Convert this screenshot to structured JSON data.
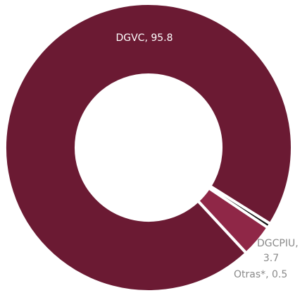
{
  "chart_data": {
    "type": "pie",
    "variant": "donut",
    "title": "",
    "slices": [
      {
        "label": "DGVC",
        "value": 95.8,
        "color": "#6b1a33",
        "label_text": "DGVC, 95.8"
      },
      {
        "label": "DGCPIU",
        "value": 3.7,
        "color": "#8f2747",
        "label_text_lines": [
          "DGCPIU,",
          "3.7"
        ]
      },
      {
        "label": "Otras*",
        "value": 0.5,
        "color": "#111111",
        "label_text": "Otras*, 0.5"
      }
    ],
    "label_colors": {
      "inside": "#ffffff",
      "outside": "#8a8a8a"
    },
    "background": "#ffffff",
    "separator_color": "#ffffff"
  }
}
